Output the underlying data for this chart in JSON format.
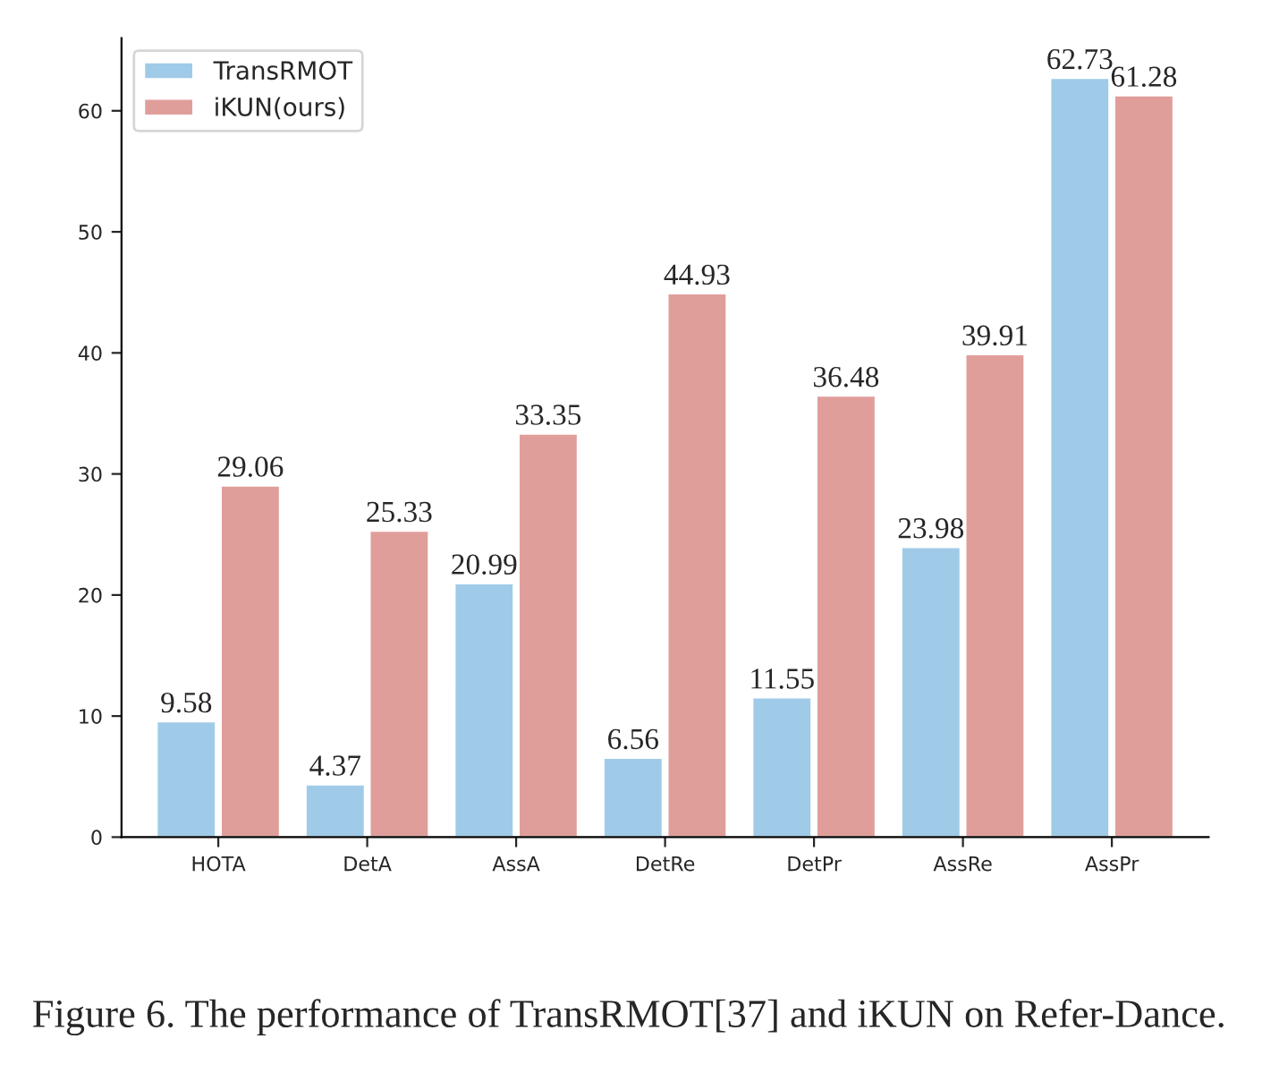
{
  "chart_data": {
    "type": "bar",
    "categories": [
      "HOTA",
      "DetA",
      "AssA",
      "DetRe",
      "DetPr",
      "AssRe",
      "AssPr"
    ],
    "series": [
      {
        "name": "TransRMOT",
        "color": "#9fcbe8",
        "values": [
          9.58,
          4.37,
          20.99,
          6.56,
          11.55,
          23.98,
          62.73
        ]
      },
      {
        "name": "iKUN(ours)",
        "color": "#e09e9b",
        "values": [
          29.06,
          25.33,
          33.35,
          44.93,
          36.48,
          39.91,
          61.28
        ]
      }
    ],
    "ylim": [
      0,
      66
    ],
    "yticks": [
      0,
      10,
      20,
      30,
      40,
      50,
      60
    ],
    "data_labels": true,
    "legend": "top left",
    "grid": false,
    "annotations": [
      "Figure 6. The performance of TransRMOT[37] and iKUN on Refer-Dance."
    ]
  }
}
